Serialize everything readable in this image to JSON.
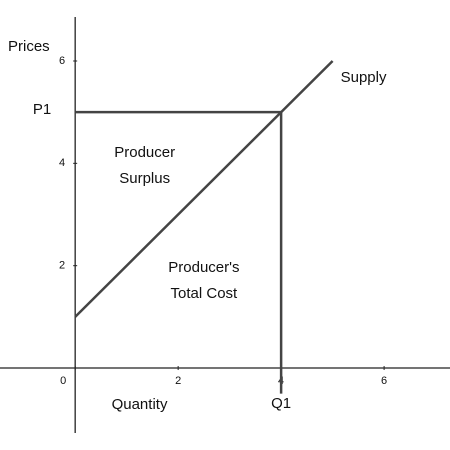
{
  "chart_data": {
    "type": "line",
    "xlabel": "Quantity",
    "ylabel": "Prices",
    "xlim": [
      -1.46,
      7.28
    ],
    "ylim": [
      -1.27,
      6.86
    ],
    "xticks": [
      0,
      2,
      4,
      6
    ],
    "yticks": [
      2,
      4,
      6
    ],
    "series": [
      {
        "name": "Supply",
        "color": "#444444",
        "x": [
          0,
          5
        ],
        "values": [
          1,
          6
        ]
      }
    ],
    "guides": [
      {
        "label": "P1",
        "color": "#444444",
        "x": [
          0,
          4
        ],
        "values": [
          5,
          5
        ]
      },
      {
        "label": "Q1",
        "color": "#444444",
        "x": [
          4,
          4
        ],
        "values": [
          5,
          -0.5
        ]
      }
    ],
    "annotations": [
      [
        "Producer",
        "Surplus"
      ],
      [
        "Producer's",
        "Total Cost"
      ]
    ]
  }
}
